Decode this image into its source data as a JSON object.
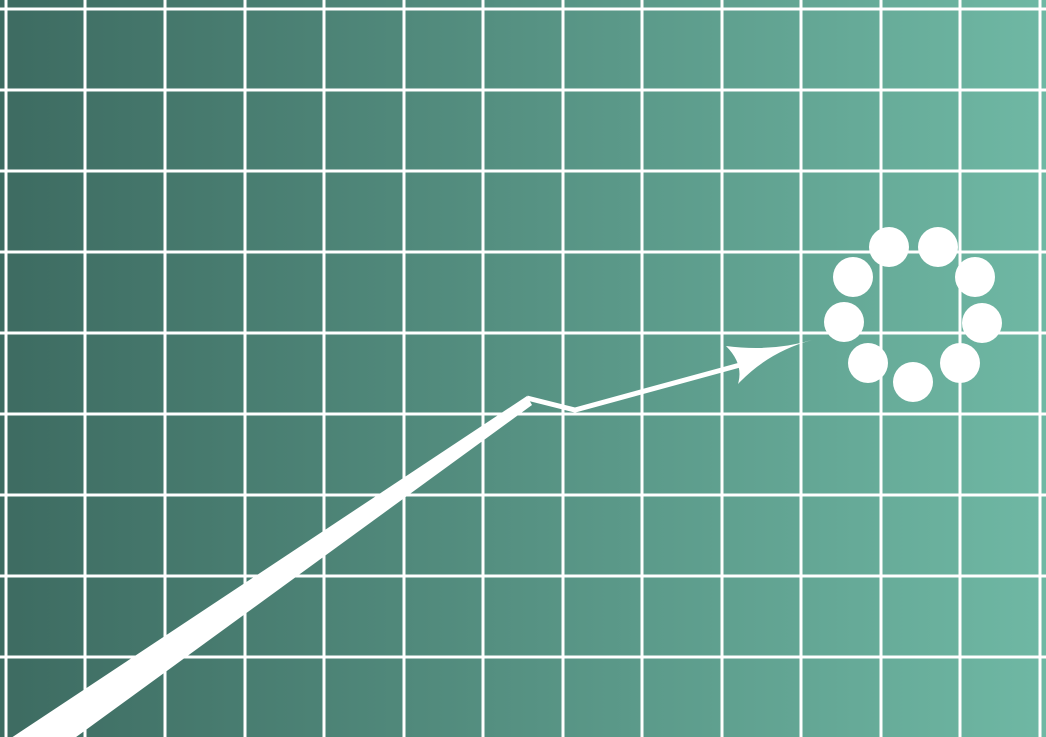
{
  "colors": {
    "gradient_start": "#3d6b61",
    "gradient_end": "#6fb8a4",
    "grid": "#ffffff",
    "arrow": "#ffffff",
    "dots": "#ffffff"
  },
  "icons": {
    "arrow": "trend-arrow-icon",
    "dots": "loading-spinner-icon"
  }
}
